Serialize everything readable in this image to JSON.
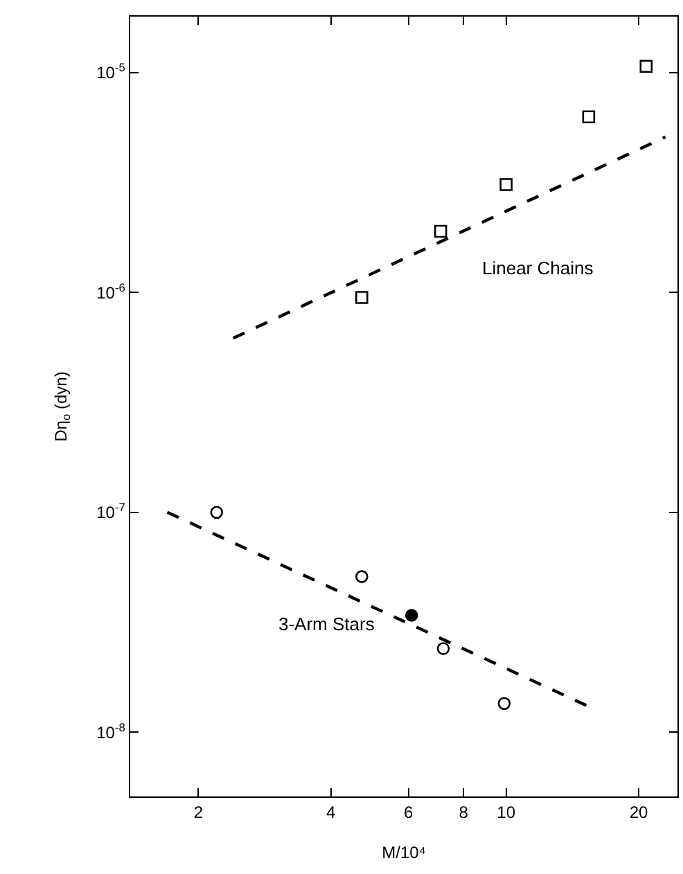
{
  "chart_data": {
    "type": "scatter",
    "xlabel": "M/10⁴",
    "ylabel": "Dη$_{o}$ (dyn)",
    "log": "xy",
    "grid": false,
    "legend": false,
    "xlim": [
      1.4,
      24.5
    ],
    "xticks": [
      2,
      4,
      6,
      8,
      10,
      20
    ],
    "ylim": [
      5.1e-09,
      1.8e-05
    ],
    "yticks": [
      {
        "value": 1e-08,
        "label": "10$^{-8}$"
      },
      {
        "value": 1e-07,
        "label": "10$^{-7}$"
      },
      {
        "value": 1e-06,
        "label": "10$^{-6}$"
      },
      {
        "value": 1e-05,
        "label": "10$^{-5}$"
      }
    ],
    "series": [
      {
        "name": "Linear Chains",
        "marker": "square",
        "color": "#000000",
        "colors": [
          "#ffffff",
          "#ffffff",
          "#ffffff",
          "#ffffff",
          "#ffffff"
        ],
        "x": [
          4.7,
          7.1,
          10,
          15.4,
          20.8
        ],
        "values": [
          9.5e-07,
          1.9e-06,
          3.1e-06,
          6.3e-06,
          1.07e-05
        ]
      },
      {
        "type": "line",
        "line_style": "dashed",
        "color": "#000000",
        "x": [
          2.4,
          23
        ],
        "values": [
          6.2e-07,
          5.1e-06
        ]
      },
      {
        "name": "3-Arm Stars",
        "marker": "circle",
        "color": "#000000",
        "colors": [
          "#ffffff",
          "#ffffff",
          "#000000",
          "#ffffff",
          "#ffffff"
        ],
        "x": [
          2.2,
          4.7,
          6.1,
          7.2,
          9.9
        ],
        "values": [
          1e-07,
          5.1e-08,
          3.4e-08,
          2.4e-08,
          1.35e-08
        ]
      },
      {
        "type": "line",
        "line_style": "dashed",
        "color": "#000000",
        "x": [
          1.7,
          15.5
        ],
        "values": [
          1e-07,
          1.3e-08
        ]
      }
    ]
  }
}
